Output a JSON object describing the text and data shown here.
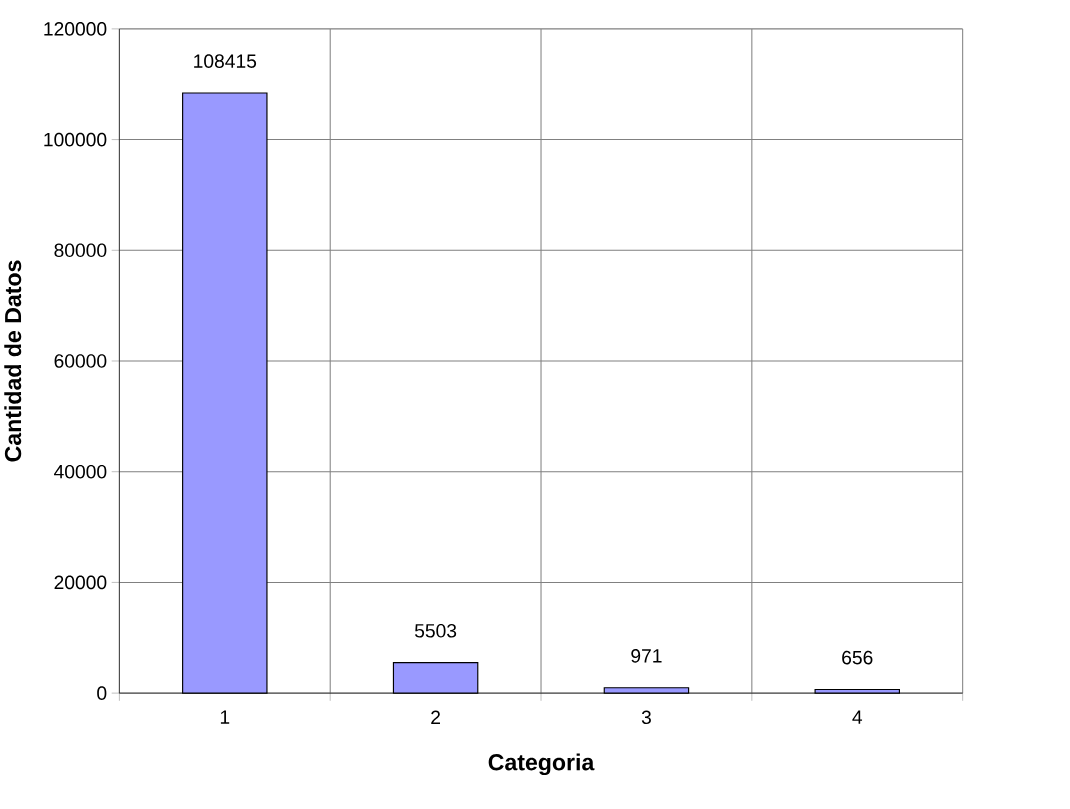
{
  "chart_data": {
    "type": "bar",
    "xlabel": "Categoria",
    "ylabel": "Cantidad de Datos",
    "categories": [
      "1",
      "2",
      "3",
      "4"
    ],
    "values": [
      108415,
      5503,
      971,
      656
    ],
    "color": "#9999ff",
    "ylim": [
      0,
      120000
    ],
    "yticks": [
      0,
      20000,
      40000,
      60000,
      80000,
      100000,
      120000
    ],
    "grid": true,
    "data_labels": true
  }
}
